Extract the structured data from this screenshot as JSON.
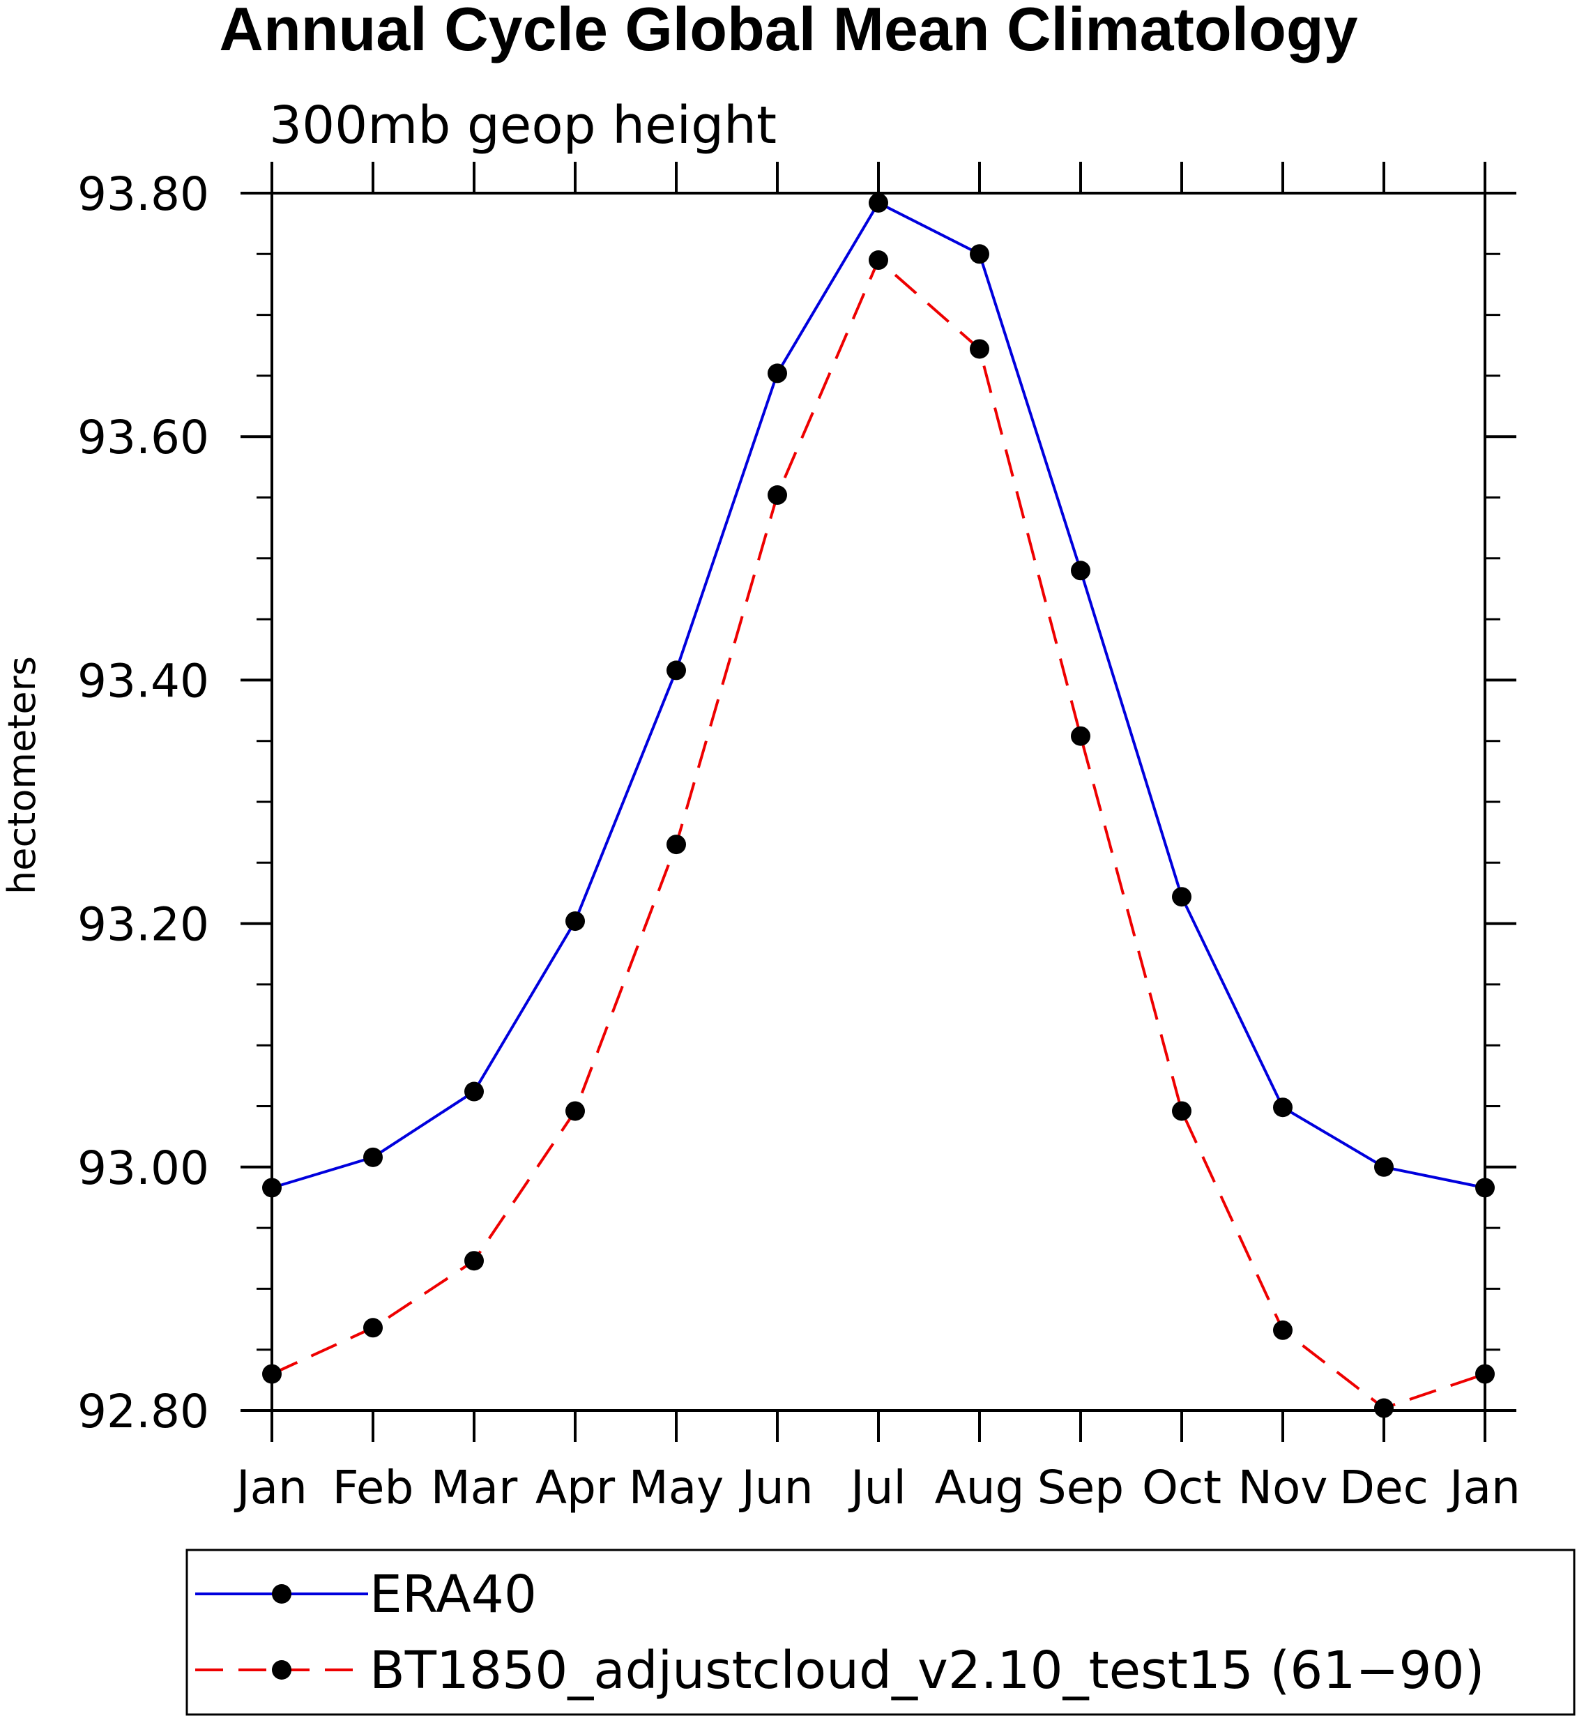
{
  "chart_data": {
    "type": "line",
    "title": "Annual Cycle Global Mean Climatology",
    "subtitle": "300mb geop height",
    "xlabel": "",
    "ylabel": "hectometers",
    "categories": [
      "Jan",
      "Feb",
      "Mar",
      "Apr",
      "May",
      "Jun",
      "Jul",
      "Aug",
      "Sep",
      "Oct",
      "Nov",
      "Dec",
      "Jan"
    ],
    "ylim": [
      92.8,
      93.8
    ],
    "yticks": [
      92.8,
      93.0,
      93.2,
      93.4,
      93.6,
      93.8
    ],
    "ytick_labels": [
      "92.80",
      "93.00",
      "93.20",
      "93.40",
      "93.60",
      "93.80"
    ],
    "grid": false,
    "legend_position": "bottom",
    "series": [
      {
        "name": "ERA40",
        "color": "#0000dd",
        "dash": "solid",
        "marker": "circle",
        "values": [
          92.983,
          93.008,
          93.062,
          93.202,
          93.408,
          93.652,
          93.792,
          93.75,
          93.49,
          93.222,
          93.049,
          93.0,
          92.983
        ]
      },
      {
        "name": "BT1850_adjustcloud_v2.10_test15 (61−90)",
        "color": "#ee0000",
        "dash": "dashed",
        "marker": "circle",
        "values": [
          92.83,
          92.868,
          92.923,
          93.046,
          93.265,
          93.552,
          93.745,
          93.672,
          93.354,
          93.046,
          92.866,
          92.802,
          92.83
        ]
      }
    ]
  }
}
